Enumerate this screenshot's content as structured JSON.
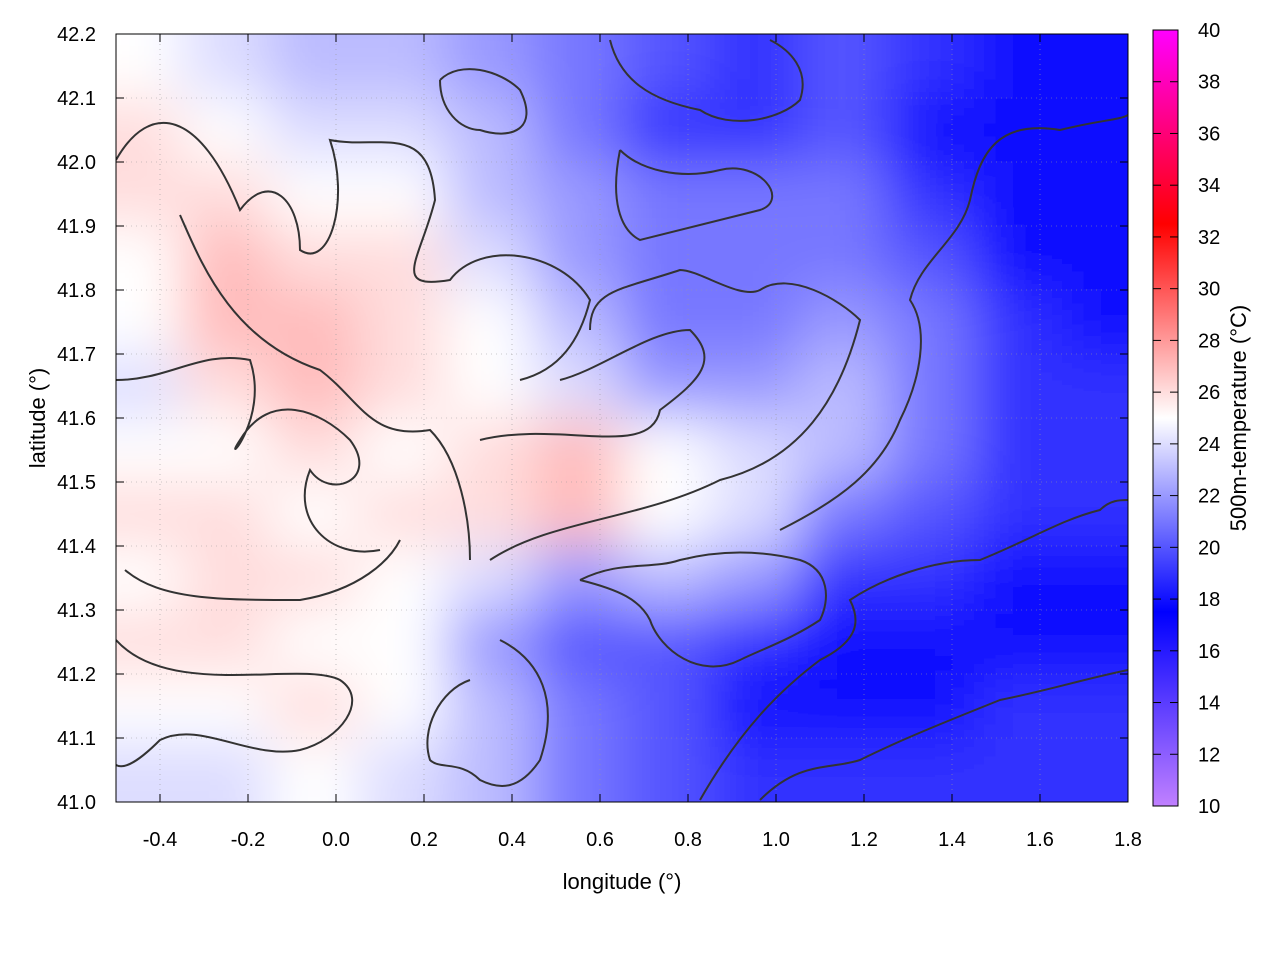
{
  "chart_data": {
    "type": "heatmap",
    "xlabel": "longitude (°)",
    "ylabel": "latitude (°)",
    "colorbar_label": "500m-temperature (°C)",
    "xlim": [
      -0.5,
      1.8
    ],
    "ylim": [
      41.0,
      42.2
    ],
    "clim": [
      10,
      40
    ],
    "xticks": [
      "-0.4",
      "-0.2",
      "0.0",
      "0.2",
      "0.4",
      "0.6",
      "0.8",
      "1.0",
      "1.2",
      "1.4",
      "1.6",
      "1.8"
    ],
    "yticks": [
      "41.0",
      "41.1",
      "41.2",
      "41.3",
      "41.4",
      "41.5",
      "41.6",
      "41.7",
      "41.8",
      "41.9",
      "42.0",
      "42.1",
      "42.2"
    ],
    "cticks": [
      "10",
      "12",
      "14",
      "16",
      "18",
      "20",
      "22",
      "24",
      "26",
      "28",
      "30",
      "32",
      "34",
      "36",
      "38",
      "40"
    ],
    "grid": true,
    "colormap": [
      {
        "value": 10,
        "color": "#c080ff"
      },
      {
        "value": 17.5,
        "color": "#0000ff"
      },
      {
        "value": 25,
        "color": "#ffffff"
      },
      {
        "value": 32.5,
        "color": "#ff0000"
      },
      {
        "value": 40,
        "color": "#ff00ff"
      }
    ],
    "grid_lon": [
      -0.45,
      -0.25,
      -0.05,
      0.15,
      0.35,
      0.55,
      0.75,
      0.95,
      1.15,
      1.35,
      1.55,
      1.75
    ],
    "grid_lat": [
      42.15,
      42.05,
      41.95,
      41.85,
      41.75,
      41.65,
      41.55,
      41.45,
      41.35,
      41.25,
      41.15,
      41.05
    ],
    "values": [
      [
        25,
        24,
        23,
        23,
        22,
        21,
        20,
        19,
        20,
        19,
        17,
        18
      ],
      [
        26,
        25,
        24,
        24,
        23,
        21,
        19,
        19,
        20,
        18,
        18,
        18
      ],
      [
        26,
        26,
        25,
        25,
        23,
        22,
        21,
        21,
        21,
        19,
        18,
        18
      ],
      [
        25,
        27,
        26,
        26,
        24,
        22,
        21,
        21,
        21,
        20,
        18,
        18
      ],
      [
        25,
        27,
        27,
        26,
        25,
        23,
        21,
        21,
        22,
        21,
        19,
        18
      ],
      [
        24,
        26,
        27,
        26,
        25,
        24,
        22,
        22,
        23,
        21,
        19,
        19
      ],
      [
        25,
        25,
        26,
        25,
        26,
        27,
        25,
        24,
        23,
        21,
        19,
        19
      ],
      [
        26,
        26,
        25,
        26,
        26,
        27,
        25,
        24,
        21,
        20,
        19,
        19
      ],
      [
        25,
        26,
        26,
        25,
        24,
        22,
        23,
        22,
        19,
        19,
        18,
        18
      ],
      [
        26,
        26,
        25,
        25,
        22,
        20,
        20,
        19,
        18,
        18,
        18,
        18
      ],
      [
        25,
        25,
        26,
        25,
        23,
        21,
        20,
        18,
        18,
        18,
        19,
        19
      ],
      [
        24,
        24,
        25,
        24,
        23,
        21,
        20,
        19,
        19,
        19,
        19,
        19
      ]
    ]
  }
}
